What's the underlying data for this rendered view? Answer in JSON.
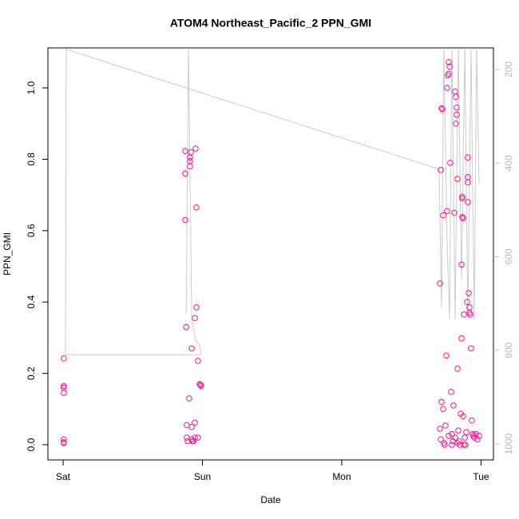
{
  "chart_data": {
    "type": "scatter",
    "title": "ATOM4 Northeast_Pacific_2 PPN_GMI",
    "x_label": "Date",
    "y_label": "PPN_GMI",
    "xlim": [
      -0.109,
      3.089
    ],
    "xticks": [
      {
        "value": 0,
        "label": "Sat"
      },
      {
        "value": 1,
        "label": "Sun"
      },
      {
        "value": 2,
        "label": "Mon"
      },
      {
        "value": 3,
        "label": "Tue"
      }
    ],
    "ylim": [
      -0.0425,
      1.112
    ],
    "yticks": [
      {
        "value": 0,
        "label": "0.0"
      },
      0.2,
      0.4,
      0.6,
      0.8,
      {
        "value": 1,
        "label": "1.0"
      }
    ],
    "y2lim": [
      1034,
      154
    ],
    "y2ticks": [
      200,
      400,
      600,
      800,
      1000
    ],
    "y2_color": "#bbbbbb",
    "series": [
      {
        "type": "scatter",
        "color": "#ff1493",
        "x": [
          0.005,
          0.005,
          0.005,
          0.005,
          0.005,
          0.005,
          0.005,
          0.877,
          0.877,
          0.877,
          0.883,
          0.888,
          0.888,
          0.894,
          0.905,
          0.911,
          0.911,
          0.911,
          0.917,
          0.923,
          0.923,
          0.923,
          0.928,
          0.946,
          0.957,
          0.951,
          0.957,
          0.946,
          0.946,
          0.968,
          0.98,
          0.991,
          0.986,
          0.968,
          0.934,
          2.705,
          2.711,
          2.716,
          2.722,
          2.728,
          2.716,
          2.728,
          2.705,
          2.711,
          2.734,
          2.739,
          2.745,
          2.751,
          2.756,
          2.756,
          2.762,
          2.768,
          2.768,
          2.774,
          2.779,
          2.785,
          2.791,
          2.797,
          2.802,
          2.808,
          2.814,
          2.819,
          2.819,
          2.825,
          2.825,
          2.831,
          2.831,
          2.837,
          2.842,
          2.848,
          2.854,
          2.86,
          2.86,
          2.865,
          2.865,
          2.865,
          2.871,
          2.871,
          2.877,
          2.883,
          2.888,
          2.894,
          2.9,
          2.905,
          2.905,
          2.905,
          2.905,
          2.911,
          2.917,
          2.917,
          2.923,
          2.928,
          2.934,
          2.94,
          2.946,
          2.951,
          2.963,
          2.974,
          2.986,
          2.814,
          2.831,
          2.877,
          2.791,
          2.768
        ],
        "values": [
          0.242,
          0.165,
          0.16,
          0.145,
          0.015,
          0.007,
          0.005,
          0.823,
          0.76,
          0.63,
          0.33,
          0.055,
          0.02,
          0.01,
          0.13,
          0.805,
          0.795,
          0.78,
          0.82,
          0.27,
          0.05,
          0.015,
          0.01,
          0.355,
          0.385,
          0.83,
          0.665,
          0.062,
          0.02,
          0.235,
          0.17,
          0.165,
          0.168,
          0.02,
          0.01,
          0.452,
          0.77,
          0.943,
          0.94,
          0.643,
          0.12,
          0.1,
          0.045,
          0.015,
          0.005,
          0.0,
          0.054,
          0.25,
          0.655,
          1.0,
          1.035,
          1.04,
          1.072,
          1.06,
          0.79,
          0.148,
          0.03,
          0.01,
          0.11,
          0.65,
          0.99,
          0.975,
          0.9,
          0.945,
          0.925,
          0.745,
          0.213,
          0.04,
          0.01,
          0.0,
          0.087,
          0.298,
          0.505,
          0.69,
          0.695,
          0.638,
          0.635,
          0.08,
          0.365,
          0.02,
          0.0,
          0.035,
          0.4,
          0.805,
          0.75,
          0.735,
          0.68,
          0.425,
          0.37,
          0.385,
          0.365,
          0.27,
          0.068,
          0.03,
          0.025,
          0.02,
          0.03,
          0.015,
          0.025,
          0.02,
          0.005,
          0.0,
          0.0,
          0.025
        ]
      },
      {
        "type": "line",
        "axis": "y2",
        "color": "#cccccc",
        "x": [
          0.883,
          0.9,
          0.923,
          0.951,
          0.98,
          0.991,
          0.017,
          0.023,
          2.699,
          2.716,
          2.733,
          2.756,
          2.774,
          2.791,
          2.814,
          2.837,
          2.86,
          2.883,
          2.905,
          2.928,
          2.951,
          2.968,
          2.986
        ],
        "values": [
          722,
          154,
          734,
          778,
          790,
          809,
          809,
          157,
          413,
          709,
          154,
          563,
          734,
          154,
          734,
          154,
          649,
          154,
          734,
          154,
          734,
          154,
          444
        ]
      }
    ]
  }
}
